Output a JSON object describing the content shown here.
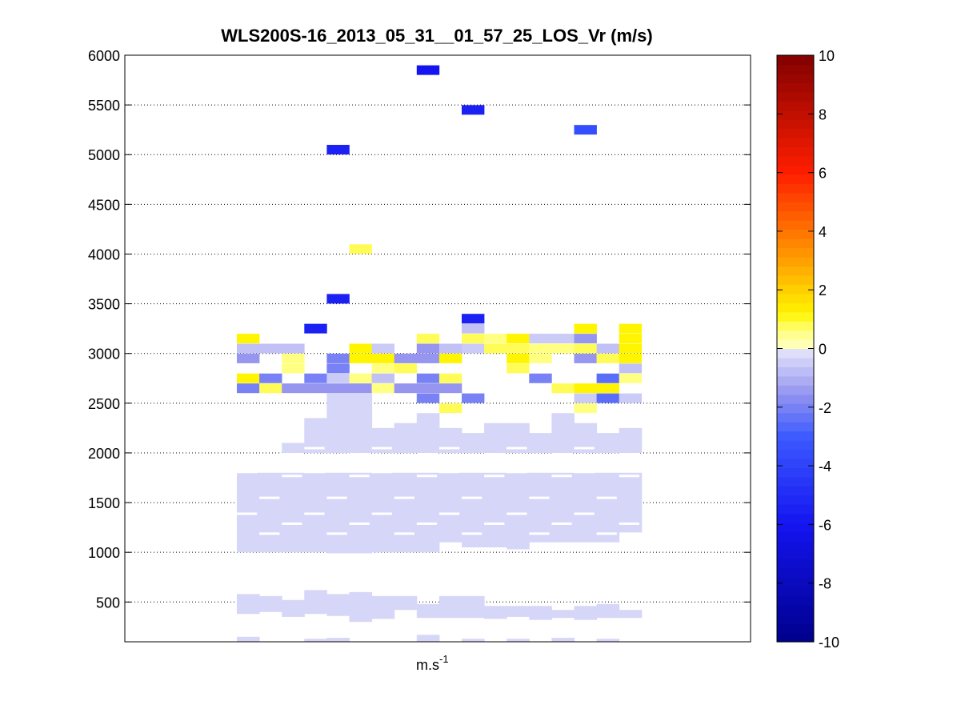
{
  "chart_data": {
    "type": "heatmap",
    "title": "WLS200S-16_2013_05_31__01_57_25_LOS_Vr (m/s)",
    "xlabel": "m.s",
    "xlabel_superscript": "-1",
    "ylabel": "",
    "ylim": [
      100,
      6000
    ],
    "yticks": [
      500,
      1000,
      1500,
      2000,
      2500,
      3000,
      3500,
      4000,
      4500,
      5000,
      5500,
      6000
    ],
    "grid": "dotted horizontal",
    "colormap": "jet",
    "colorbar": {
      "range": [
        -10,
        10
      ],
      "ticks": [
        -10,
        -8,
        -6,
        -4,
        -2,
        0,
        2,
        4,
        6,
        8,
        10
      ],
      "levels": 64
    },
    "columns": 18,
    "cells": [
      {
        "c": 8,
        "y": 5850,
        "v": -6
      },
      {
        "c": 10,
        "y": 5450,
        "v": -5.5
      },
      {
        "c": 15,
        "y": 5250,
        "v": -3.5
      },
      {
        "c": 4,
        "y": 5050,
        "v": -5.5
      },
      {
        "c": 5,
        "y": 4050,
        "v": 0.8
      },
      {
        "c": 4,
        "y": 3550,
        "v": -5.5
      },
      {
        "c": 10,
        "y": 3350,
        "v": -5.5
      },
      {
        "c": 3,
        "y": 3250,
        "v": -5.5
      },
      {
        "c": 0,
        "y": 3150,
        "v": 1.2
      },
      {
        "c": 8,
        "y": 3150,
        "v": 0.8
      },
      {
        "c": 10,
        "y": 3150,
        "v": 0.8
      },
      {
        "c": 11,
        "y": 3150,
        "v": 0.6
      },
      {
        "c": 12,
        "y": 3150,
        "v": 1.2
      },
      {
        "c": 13,
        "y": 3150,
        "v": -0.5
      },
      {
        "c": 14,
        "y": 3150,
        "v": -0.5
      },
      {
        "c": 15,
        "y": 3150,
        "v": -1.5
      },
      {
        "c": 17,
        "y": 3150,
        "v": 1.2
      },
      {
        "c": 10,
        "y": 3250,
        "v": -0.7
      },
      {
        "c": 15,
        "y": 3250,
        "v": 1.2
      },
      {
        "c": 17,
        "y": 3250,
        "v": 1.2
      },
      {
        "c": 0,
        "y": 3050,
        "v": -0.7
      },
      {
        "c": 1,
        "y": 3050,
        "v": -0.7
      },
      {
        "c": 2,
        "y": 3050,
        "v": -0.7
      },
      {
        "c": 5,
        "y": 3050,
        "v": 1.2
      },
      {
        "c": 6,
        "y": 3050,
        "v": -0.5
      },
      {
        "c": 8,
        "y": 3050,
        "v": -1.5
      },
      {
        "c": 9,
        "y": 3050,
        "v": -0.7
      },
      {
        "c": 10,
        "y": 3050,
        "v": -0.5
      },
      {
        "c": 11,
        "y": 3050,
        "v": 0.8
      },
      {
        "c": 12,
        "y": 3050,
        "v": 0.8
      },
      {
        "c": 13,
        "y": 3050,
        "v": 0.6
      },
      {
        "c": 14,
        "y": 3050,
        "v": 0.6
      },
      {
        "c": 15,
        "y": 3050,
        "v": 0.8
      },
      {
        "c": 16,
        "y": 3050,
        "v": -0.7
      },
      {
        "c": 17,
        "y": 3050,
        "v": 1.2
      },
      {
        "c": 0,
        "y": 2950,
        "v": -1.5
      },
      {
        "c": 2,
        "y": 2950,
        "v": 0.6
      },
      {
        "c": 4,
        "y": 2950,
        "v": -2
      },
      {
        "c": 5,
        "y": 2950,
        "v": 1.2
      },
      {
        "c": 6,
        "y": 2950,
        "v": 1.2
      },
      {
        "c": 7,
        "y": 2950,
        "v": -1.5
      },
      {
        "c": 8,
        "y": 2950,
        "v": -1.5
      },
      {
        "c": 9,
        "y": 2950,
        "v": 1.2
      },
      {
        "c": 12,
        "y": 2950,
        "v": 1.2
      },
      {
        "c": 13,
        "y": 2950,
        "v": 0.6
      },
      {
        "c": 15,
        "y": 2950,
        "v": -1.5
      },
      {
        "c": 16,
        "y": 2950,
        "v": 0.8
      },
      {
        "c": 17,
        "y": 2950,
        "v": 1.2
      },
      {
        "c": 2,
        "y": 2850,
        "v": 0.6
      },
      {
        "c": 4,
        "y": 2850,
        "v": -2
      },
      {
        "c": 6,
        "y": 2850,
        "v": 0.6
      },
      {
        "c": 7,
        "y": 2850,
        "v": 0.8
      },
      {
        "c": 12,
        "y": 2850,
        "v": 0.8
      },
      {
        "c": 17,
        "y": 2850,
        "v": -0.7
      },
      {
        "c": 0,
        "y": 2750,
        "v": 1.2
      },
      {
        "c": 1,
        "y": 2750,
        "v": -2
      },
      {
        "c": 3,
        "y": 2750,
        "v": -2
      },
      {
        "c": 4,
        "y": 2750,
        "v": -0.5
      },
      {
        "c": 5,
        "y": 2750,
        "v": 0.6
      },
      {
        "c": 6,
        "y": 2750,
        "v": -0.7
      },
      {
        "c": 8,
        "y": 2750,
        "v": -2
      },
      {
        "c": 9,
        "y": 2750,
        "v": 0.8
      },
      {
        "c": 13,
        "y": 2750,
        "v": -2
      },
      {
        "c": 16,
        "y": 2750,
        "v": -2.5
      },
      {
        "c": 17,
        "y": 2750,
        "v": 0.6
      },
      {
        "c": 0,
        "y": 2650,
        "v": -2
      },
      {
        "c": 1,
        "y": 2650,
        "v": 0.8
      },
      {
        "c": 2,
        "y": 2650,
        "v": -1.5
      },
      {
        "c": 3,
        "y": 2650,
        "v": -1.5
      },
      {
        "c": 4,
        "y": 2650,
        "v": -1.5
      },
      {
        "c": 5,
        "y": 2650,
        "v": -1.5
      },
      {
        "c": 6,
        "y": 2650,
        "v": 0.6
      },
      {
        "c": 7,
        "y": 2650,
        "v": -1.5
      },
      {
        "c": 8,
        "y": 2650,
        "v": -1.5
      },
      {
        "c": 9,
        "y": 2650,
        "v": -1.5
      },
      {
        "c": 14,
        "y": 2650,
        "v": 0.8
      },
      {
        "c": 15,
        "y": 2650,
        "v": 1.2
      },
      {
        "c": 16,
        "y": 2650,
        "v": 1.2
      },
      {
        "c": 8,
        "y": 2550,
        "v": -2
      },
      {
        "c": 10,
        "y": 2550,
        "v": -2
      },
      {
        "c": 15,
        "y": 2550,
        "v": -0.5
      },
      {
        "c": 16,
        "y": 2550,
        "v": -2.5
      },
      {
        "c": 17,
        "y": 2550,
        "v": -0.5
      },
      {
        "c": 9,
        "y": 2450,
        "v": 0.8
      },
      {
        "c": 15,
        "y": 2450,
        "v": 0.6
      }
    ],
    "pale_bands": [
      {
        "c": 0,
        "y0": 1000,
        "y1": 1800
      },
      {
        "c": 1,
        "y0": 1000,
        "y1": 1800
      },
      {
        "c": 2,
        "y0": 1000,
        "y1": 1800
      },
      {
        "c": 3,
        "y0": 1000,
        "y1": 1800
      },
      {
        "c": 4,
        "y0": 990,
        "y1": 1800
      },
      {
        "c": 5,
        "y0": 990,
        "y1": 1800
      },
      {
        "c": 6,
        "y0": 1000,
        "y1": 1800
      },
      {
        "c": 7,
        "y0": 1000,
        "y1": 1800
      },
      {
        "c": 8,
        "y0": 1000,
        "y1": 1800
      },
      {
        "c": 9,
        "y0": 1100,
        "y1": 1800
      },
      {
        "c": 10,
        "y0": 1050,
        "y1": 1800
      },
      {
        "c": 11,
        "y0": 1050,
        "y1": 1800
      },
      {
        "c": 12,
        "y0": 1030,
        "y1": 1800
      },
      {
        "c": 13,
        "y0": 1100,
        "y1": 1800
      },
      {
        "c": 14,
        "y0": 1100,
        "y1": 1800
      },
      {
        "c": 15,
        "y0": 1100,
        "y1": 1800
      },
      {
        "c": 16,
        "y0": 1100,
        "y1": 1800
      },
      {
        "c": 17,
        "y0": 1200,
        "y1": 1800
      },
      {
        "c": 2,
        "y0": 2000,
        "y1": 2100
      },
      {
        "c": 3,
        "y0": 2000,
        "y1": 2350
      },
      {
        "c": 4,
        "y0": 2000,
        "y1": 2600
      },
      {
        "c": 5,
        "y0": 2000,
        "y1": 2600
      },
      {
        "c": 6,
        "y0": 2000,
        "y1": 2250
      },
      {
        "c": 7,
        "y0": 2000,
        "y1": 2300
      },
      {
        "c": 8,
        "y0": 2000,
        "y1": 2400
      },
      {
        "c": 9,
        "y0": 2000,
        "y1": 2250
      },
      {
        "c": 10,
        "y0": 2000,
        "y1": 2200
      },
      {
        "c": 11,
        "y0": 2000,
        "y1": 2300
      },
      {
        "c": 12,
        "y0": 2000,
        "y1": 2300
      },
      {
        "c": 13,
        "y0": 2000,
        "y1": 2200
      },
      {
        "c": 14,
        "y0": 2000,
        "y1": 2400
      },
      {
        "c": 15,
        "y0": 2000,
        "y1": 2300
      },
      {
        "c": 16,
        "y0": 2000,
        "y1": 2200
      },
      {
        "c": 17,
        "y0": 2000,
        "y1": 2250
      },
      {
        "c": 0,
        "y0": 380,
        "y1": 580
      },
      {
        "c": 1,
        "y0": 400,
        "y1": 560
      },
      {
        "c": 2,
        "y0": 350,
        "y1": 520
      },
      {
        "c": 3,
        "y0": 380,
        "y1": 620
      },
      {
        "c": 4,
        "y0": 360,
        "y1": 580
      },
      {
        "c": 5,
        "y0": 300,
        "y1": 600
      },
      {
        "c": 6,
        "y0": 330,
        "y1": 560
      },
      {
        "c": 7,
        "y0": 420,
        "y1": 560
      },
      {
        "c": 8,
        "y0": 340,
        "y1": 480
      },
      {
        "c": 9,
        "y0": 340,
        "y1": 560
      },
      {
        "c": 10,
        "y0": 340,
        "y1": 560
      },
      {
        "c": 11,
        "y0": 330,
        "y1": 460
      },
      {
        "c": 12,
        "y0": 350,
        "y1": 460
      },
      {
        "c": 13,
        "y0": 320,
        "y1": 460
      },
      {
        "c": 14,
        "y0": 340,
        "y1": 420
      },
      {
        "c": 15,
        "y0": 320,
        "y1": 460
      },
      {
        "c": 16,
        "y0": 340,
        "y1": 480
      },
      {
        "c": 17,
        "y0": 340,
        "y1": 420
      },
      {
        "c": 0,
        "y0": 100,
        "y1": 150
      },
      {
        "c": 3,
        "y0": 100,
        "y1": 130
      },
      {
        "c": 4,
        "y0": 100,
        "y1": 140
      },
      {
        "c": 8,
        "y0": 100,
        "y1": 170
      },
      {
        "c": 10,
        "y0": 100,
        "y1": 130
      },
      {
        "c": 12,
        "y0": 100,
        "y1": 130
      },
      {
        "c": 14,
        "y0": 100,
        "y1": 140
      },
      {
        "c": 16,
        "y0": 100,
        "y1": 130
      }
    ]
  },
  "colors": {
    "background": "#ffffff",
    "axis": "#000000",
    "pale": "#d6d6f8"
  }
}
